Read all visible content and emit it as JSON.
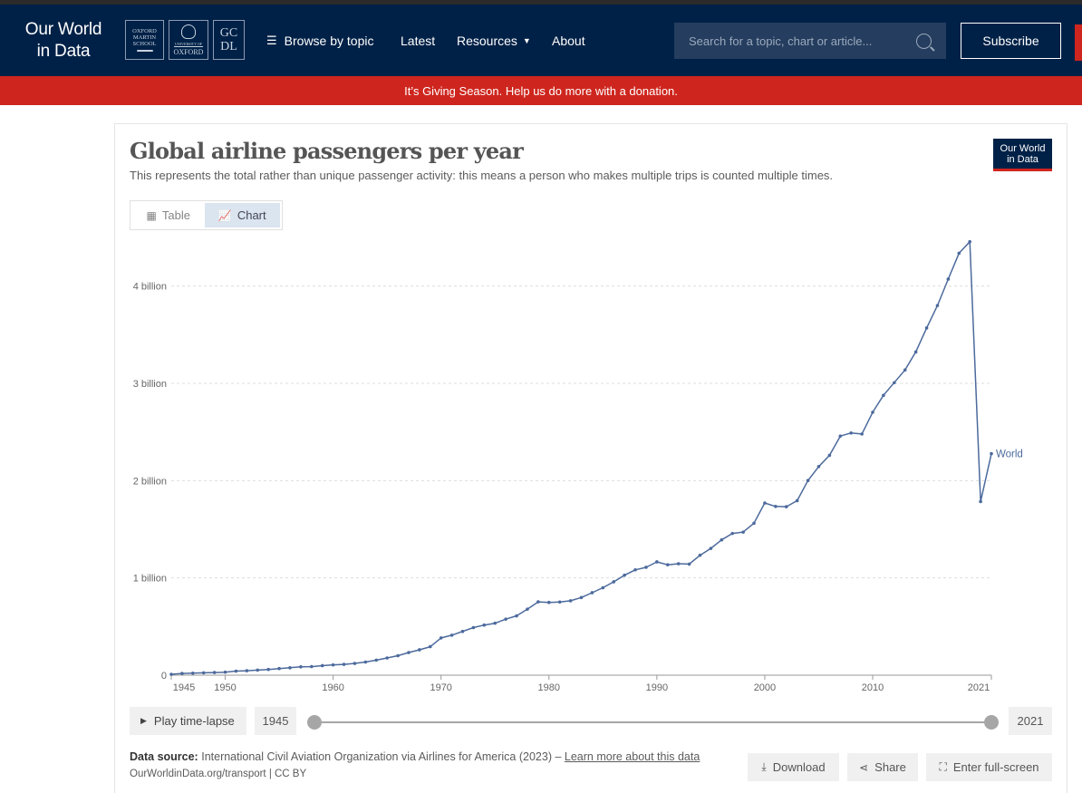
{
  "header": {
    "brand_line1": "Our World",
    "brand_line2": "in Data",
    "logo_oms": [
      "OXFORD",
      "MARTIN",
      "SCHOOL"
    ],
    "logo_oxford_small": "UNIVERSITY OF",
    "logo_oxford": "OXFORD",
    "logo_gcdl": [
      "GC",
      "DL"
    ],
    "nav": {
      "browse": "Browse by topic",
      "latest": "Latest",
      "resources": "Resources",
      "about": "About"
    },
    "search_placeholder": "Search for a topic, chart or article...",
    "subscribe": "Subscribe"
  },
  "banner": "It’s Giving Season. Help us do more with a donation.",
  "chart_page": {
    "title": "Global airline passengers per year",
    "subtitle": "This represents the total rather than unique passenger activity: this means a person who makes multiple trips is counted multiple times.",
    "logo": [
      "Our World",
      "in Data"
    ],
    "tabs": {
      "table": "Table",
      "chart": "Chart"
    },
    "play_label": "Play time-lapse",
    "year_start": "1945",
    "year_end": "2021",
    "source_label": "Data source:",
    "source_text": "International Civil Aviation Organization via Airlines for America (2023) –",
    "source_link": "Learn more about this data",
    "footer_url": "OurWorldinData.org/transport | CC BY",
    "actions": {
      "download": "Download",
      "share": "Share",
      "fullscreen": "Enter full-screen"
    }
  },
  "colors": {
    "navy": "#002147",
    "red": "#ce261e",
    "series": "#4c6a9c"
  },
  "chart_data": {
    "type": "line",
    "title": "Global airline passengers per year",
    "xlabel": "",
    "ylabel": "",
    "xlim": [
      1945,
      2021
    ],
    "ylim": [
      0,
      4.5
    ],
    "y_ticks": [
      {
        "value": 0,
        "label": "0"
      },
      {
        "value": 1,
        "label": "1 billion"
      },
      {
        "value": 2,
        "label": "2 billion"
      },
      {
        "value": 3,
        "label": "3 billion"
      },
      {
        "value": 4,
        "label": "4 billion"
      }
    ],
    "x_ticks": [
      "1945",
      "1950",
      "1960",
      "1970",
      "1980",
      "1990",
      "2000",
      "2010",
      "2021"
    ],
    "grid": true,
    "series": [
      {
        "name": "World",
        "x": [
          1945,
          1946,
          1947,
          1948,
          1949,
          1950,
          1951,
          1952,
          1953,
          1954,
          1955,
          1956,
          1957,
          1958,
          1959,
          1960,
          1961,
          1962,
          1963,
          1964,
          1965,
          1966,
          1967,
          1968,
          1969,
          1970,
          1971,
          1972,
          1973,
          1974,
          1975,
          1976,
          1977,
          1978,
          1979,
          1980,
          1981,
          1982,
          1983,
          1984,
          1985,
          1986,
          1987,
          1988,
          1989,
          1990,
          1991,
          1992,
          1993,
          1994,
          1995,
          1996,
          1997,
          1998,
          1999,
          2000,
          2001,
          2002,
          2003,
          2004,
          2005,
          2006,
          2007,
          2008,
          2009,
          2010,
          2011,
          2012,
          2013,
          2014,
          2015,
          2016,
          2017,
          2018,
          2019,
          2020,
          2021
        ],
        "values": [
          0.009,
          0.018,
          0.021,
          0.024,
          0.027,
          0.031,
          0.042,
          0.046,
          0.052,
          0.059,
          0.068,
          0.076,
          0.086,
          0.088,
          0.098,
          0.106,
          0.111,
          0.121,
          0.135,
          0.155,
          0.177,
          0.2,
          0.233,
          0.261,
          0.293,
          0.383,
          0.411,
          0.45,
          0.489,
          0.515,
          0.534,
          0.576,
          0.61,
          0.679,
          0.754,
          0.748,
          0.752,
          0.765,
          0.798,
          0.848,
          0.899,
          0.96,
          1.028,
          1.083,
          1.109,
          1.165,
          1.135,
          1.146,
          1.142,
          1.233,
          1.303,
          1.391,
          1.457,
          1.471,
          1.562,
          1.77,
          1.735,
          1.732,
          1.794,
          2.001,
          2.145,
          2.26,
          2.458,
          2.49,
          2.479,
          2.703,
          2.877,
          3.007,
          3.138,
          3.323,
          3.57,
          3.8,
          4.072,
          4.338,
          4.456,
          1.785,
          2.277
        ]
      }
    ]
  }
}
